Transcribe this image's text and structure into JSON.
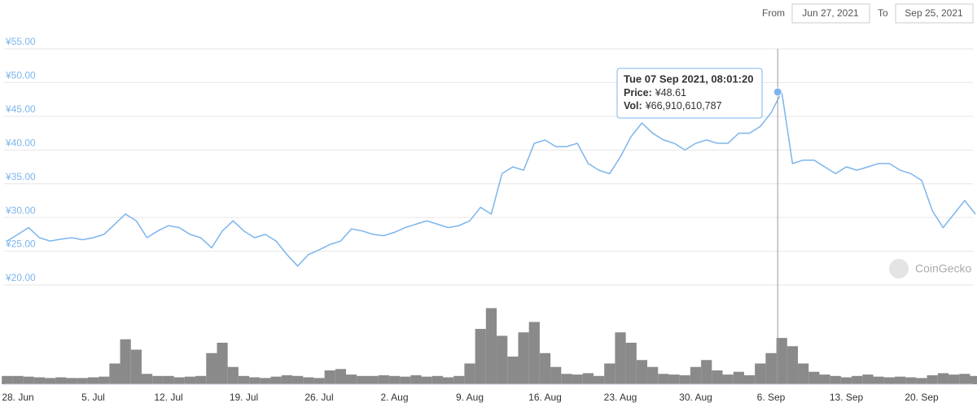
{
  "header": {
    "from_label": "From",
    "from_value": "Jun 27, 2021",
    "to_label": "To",
    "to_value": "Sep 25, 2021"
  },
  "chart_data": {
    "type": "line",
    "color": "#7cb5ec",
    "watermark": "CoinGecko",
    "categories": [
      null,
      "28. Jun",
      null,
      null,
      null,
      null,
      null,
      null,
      "5. Jul",
      null,
      null,
      null,
      null,
      null,
      null,
      "12. Jul",
      null,
      null,
      null,
      null,
      null,
      null,
      "19. Jul",
      null,
      null,
      null,
      null,
      null,
      null,
      "26. Jul",
      null,
      null,
      null,
      null,
      null,
      null,
      "2. Aug",
      null,
      null,
      null,
      null,
      null,
      null,
      "9. Aug",
      null,
      null,
      null,
      null,
      null,
      null,
      "16. Aug",
      null,
      null,
      null,
      null,
      null,
      null,
      "23. Aug",
      null,
      null,
      null,
      null,
      null,
      null,
      "30. Aug",
      null,
      null,
      null,
      null,
      null,
      null,
      "6. Sep",
      null,
      null,
      null,
      null,
      null,
      null,
      "13. Sep",
      null,
      null,
      null,
      null,
      null,
      null,
      "20. Sep",
      null,
      null,
      null,
      null,
      null
    ],
    "values": [
      26.5,
      27.5,
      28.5,
      27,
      26.5,
      26.8,
      27,
      26.7,
      27,
      27.5,
      29,
      30.5,
      29.5,
      27,
      28,
      28.8,
      28.5,
      27.5,
      27,
      25.5,
      28,
      29.5,
      28,
      27,
      27.5,
      26.5,
      24.5,
      22.8,
      24.5,
      25.2,
      26,
      26.5,
      28.3,
      28,
      27.5,
      27.3,
      27.8,
      28.5,
      29,
      29.5,
      29,
      28.5,
      28.8,
      29.5,
      31.5,
      30.5,
      36.5,
      37.5,
      37,
      41,
      41.5,
      40.5,
      40.5,
      41,
      38,
      37,
      36.5,
      39,
      42,
      44,
      42.5,
      41.5,
      41,
      40,
      41,
      41.5,
      41,
      41,
      42.5,
      42.5,
      43.5,
      45.5,
      48.61,
      38,
      38.5,
      38.5,
      37.5,
      36.5,
      37.5,
      37,
      37.5,
      38,
      38,
      37,
      36.5,
      35.5,
      31,
      28.5,
      30.5,
      32.5,
      30.5
    ],
    "ylim": [
      20,
      55
    ],
    "yticks": [
      {
        "value": 20,
        "label": "¥20.00"
      },
      {
        "value": 25,
        "label": "¥25.00"
      },
      {
        "value": 30,
        "label": "¥30.00"
      },
      {
        "value": 35,
        "label": "¥35.00"
      },
      {
        "value": 40,
        "label": "¥40.00"
      },
      {
        "value": 45,
        "label": "¥45.00"
      },
      {
        "value": 50,
        "label": "¥50.00"
      },
      {
        "value": 55,
        "label": "¥55.00"
      }
    ],
    "grid": true,
    "volume": {
      "color": "#8a8a8a",
      "ylim": [
        0,
        120000000000
      ],
      "values": [
        12000000000,
        12000000000,
        11000000000,
        10000000000,
        9000000000,
        10000000000,
        9000000000,
        9000000000,
        10000000000,
        11000000000,
        30000000000,
        65000000000,
        50000000000,
        15000000000,
        12000000000,
        12000000000,
        10000000000,
        11000000000,
        12000000000,
        45000000000,
        60000000000,
        25000000000,
        12000000000,
        10000000000,
        9000000000,
        11000000000,
        13000000000,
        12000000000,
        10000000000,
        9000000000,
        20000000000,
        22000000000,
        14000000000,
        12000000000,
        12000000000,
        13000000000,
        12000000000,
        11000000000,
        13000000000,
        11000000000,
        12000000000,
        10000000000,
        12000000000,
        30000000000,
        80000000000,
        110000000000,
        70000000000,
        40000000000,
        75000000000,
        90000000000,
        45000000000,
        25000000000,
        15000000000,
        14000000000,
        16000000000,
        12000000000,
        30000000000,
        75000000000,
        60000000000,
        35000000000,
        25000000000,
        15000000000,
        14000000000,
        13000000000,
        25000000000,
        35000000000,
        20000000000,
        14000000000,
        18000000000,
        13000000000,
        30000000000,
        45000000000,
        66910610787,
        55000000000,
        30000000000,
        18000000000,
        14000000000,
        12000000000,
        10000000000,
        12000000000,
        14000000000,
        11000000000,
        10000000000,
        11000000000,
        10000000000,
        9000000000,
        13000000000,
        16000000000,
        14000000000,
        15000000000,
        12000000000
      ]
    },
    "tooltip": {
      "title": "Tue 07 Sep 2021, 08:01:20",
      "lines": [
        {
          "label": "Price:",
          "value": "¥48.61"
        },
        {
          "label": "Vol:",
          "value": "¥66,910,610,787"
        }
      ]
    }
  }
}
